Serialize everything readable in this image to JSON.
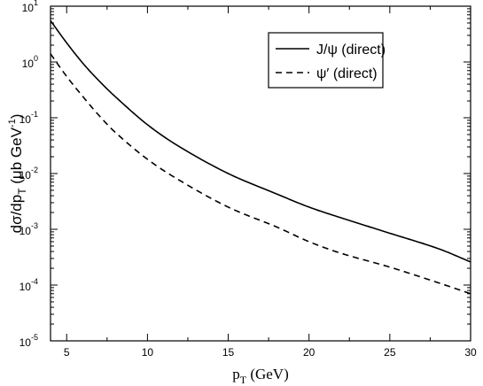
{
  "chart_data": {
    "type": "line",
    "xlabel_main": "p",
    "xlabel_sub": "T",
    "xlabel_unit": " (GeV)",
    "ylabel_main": "dσ/dp",
    "ylabel_sub": "T",
    "ylabel_unit": " (μb GeV",
    "ylabel_sup": "-1",
    "ylabel_close": ")",
    "xlim": [
      4,
      30
    ],
    "ylim": [
      1e-05,
      10
    ],
    "yscale": "log",
    "xticks": [
      {
        "value": 5,
        "label": "5"
      },
      {
        "value": 10,
        "label": "10"
      },
      {
        "value": 15,
        "label": "15"
      },
      {
        "value": 20,
        "label": "20"
      },
      {
        "value": 25,
        "label": "25"
      },
      {
        "value": 30,
        "label": "30"
      }
    ],
    "yticks": [
      {
        "value": 10,
        "base": "10",
        "exp": "1"
      },
      {
        "value": 1,
        "base": "10",
        "exp": "0"
      },
      {
        "value": 0.1,
        "base": "10",
        "exp": "-1"
      },
      {
        "value": 0.01,
        "base": "10",
        "exp": "-2"
      },
      {
        "value": 0.001,
        "base": "10",
        "exp": "-3"
      },
      {
        "value": 0.0001,
        "base": "10",
        "exp": "-4"
      },
      {
        "value": 1e-05,
        "base": "10",
        "exp": "-5"
      }
    ],
    "legend_position": "top-right",
    "series": [
      {
        "name": "J/ψ (direct)",
        "style": "solid",
        "color": "#000000",
        "x": [
          4,
          5,
          6,
          7,
          8,
          10,
          12,
          15,
          18,
          20,
          22,
          25,
          28,
          30
        ],
        "y": [
          5.5,
          2.2,
          0.95,
          0.46,
          0.24,
          0.075,
          0.03,
          0.01,
          0.0043,
          0.0025,
          0.0016,
          0.00085,
          0.00045,
          0.00026
        ]
      },
      {
        "name": "ψ′ (direct)",
        "style": "dashed",
        "color": "#000000",
        "x": [
          4,
          5,
          6,
          7,
          8,
          10,
          12,
          15,
          18,
          20,
          22,
          25,
          28,
          30
        ],
        "y": [
          1.4,
          0.55,
          0.24,
          0.11,
          0.055,
          0.018,
          0.0075,
          0.0025,
          0.0011,
          0.0006,
          0.00037,
          0.00021,
          0.00011,
          7e-05
        ]
      }
    ]
  }
}
